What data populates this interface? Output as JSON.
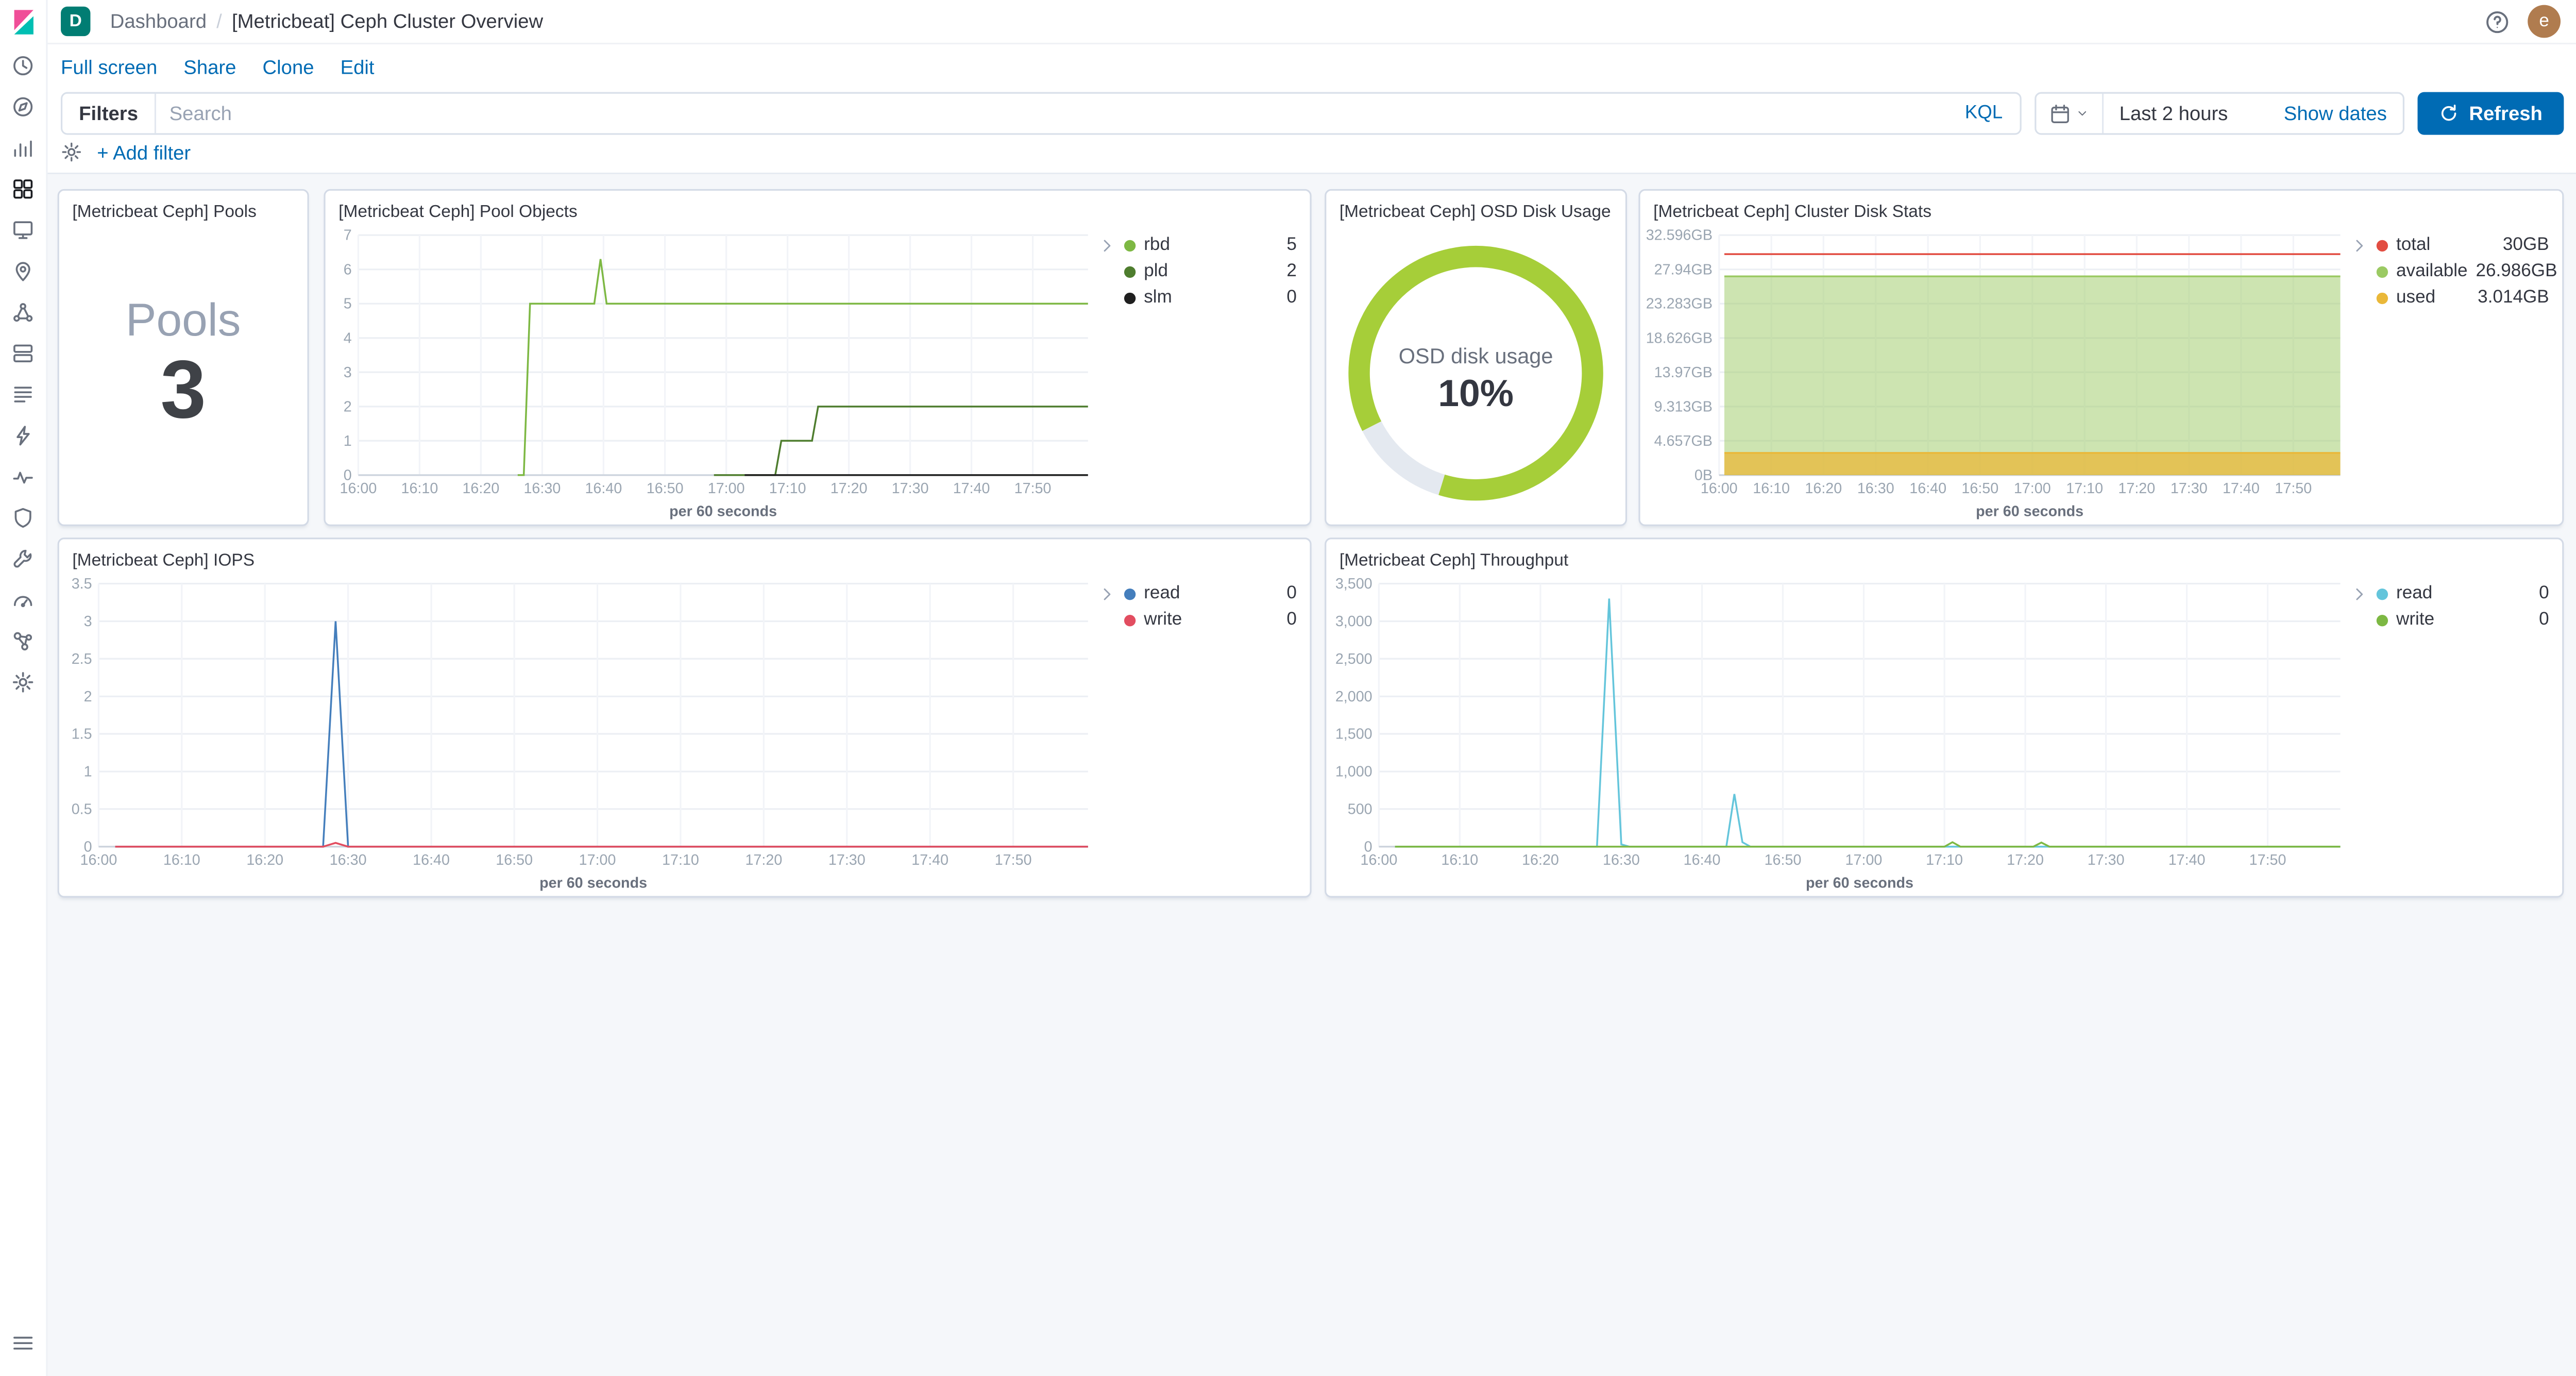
{
  "chrome": {
    "space_initial": "D",
    "breadcrumb_section": "Dashboard",
    "breadcrumb_page": "[Metricbeat] Ceph Cluster Overview",
    "avatar_initial": "e",
    "menu": {
      "full_screen": "Full screen",
      "share": "Share",
      "clone": "Clone",
      "edit": "Edit"
    },
    "query_bar": {
      "filters_label": "Filters",
      "search_placeholder": "Search",
      "kql": "KQL",
      "time_range": "Last 2 hours",
      "show_dates": "Show dates",
      "refresh": "Refresh",
      "add_filter": "+ Add filter"
    }
  },
  "sidebar": {
    "active": "dashboard",
    "items": [
      "recently-viewed",
      "discover",
      "visualize",
      "dashboard",
      "canvas",
      "maps",
      "machine-learning",
      "infrastructure",
      "logs",
      "apm",
      "uptime",
      "siem",
      "dev-tools",
      "stack-monitoring",
      "graph",
      "management"
    ]
  },
  "panels": {
    "pools": {
      "title": "[Metricbeat Ceph] Pools",
      "metric_label": "Pools",
      "metric_value": "3"
    },
    "pool_objects": {
      "title": "[Metricbeat Ceph] Pool Objects",
      "legend": [
        {
          "label": "rbd",
          "value": "5",
          "color": "#7DB843"
        },
        {
          "label": "pld",
          "value": "2",
          "color": "#4E7D2E"
        },
        {
          "label": "slm",
          "value": "0",
          "color": "#1F1F1F"
        }
      ]
    },
    "osd_disk_usage": {
      "title": "[Metricbeat Ceph] OSD Disk Usage",
      "gauge_label": "OSD disk usage",
      "gauge_value": "10%"
    },
    "cluster_disk_stats": {
      "title": "[Metricbeat Ceph] Cluster Disk Stats",
      "legend": [
        {
          "label": "total",
          "value": "30GB",
          "color": "#E24D42"
        },
        {
          "label": "available",
          "value": "26.986GB",
          "color": "#9BCA63"
        },
        {
          "label": "used",
          "value": "3.014GB",
          "color": "#EAB839"
        }
      ]
    },
    "iops": {
      "title": "[Metricbeat Ceph] IOPS",
      "legend": [
        {
          "label": "read",
          "value": "0",
          "color": "#447EBC"
        },
        {
          "label": "write",
          "value": "0",
          "color": "#E24D60"
        }
      ]
    },
    "throughput": {
      "title": "[Metricbeat Ceph] Throughput",
      "legend": [
        {
          "label": "read",
          "value": "0",
          "color": "#64C5DB"
        },
        {
          "label": "write",
          "value": "0",
          "color": "#7DB843"
        }
      ]
    }
  },
  "chart_data": [
    {
      "id": "pools",
      "type": "metric",
      "title": "[Metricbeat Ceph] Pools",
      "label": "Pools",
      "value": 3
    },
    {
      "id": "pool_objects",
      "type": "line",
      "title": "[Metricbeat Ceph] Pool Objects",
      "xlabel": "per 60 seconds",
      "x_unit": "minutes after 16:00",
      "x_domain": [
        0,
        119
      ],
      "x_ticks": [
        [
          0,
          "16:00"
        ],
        [
          10,
          "16:10"
        ],
        [
          20,
          "16:20"
        ],
        [
          30,
          "16:30"
        ],
        [
          40,
          "16:40"
        ],
        [
          50,
          "16:50"
        ],
        [
          60,
          "17:00"
        ],
        [
          70,
          "17:10"
        ],
        [
          80,
          "17:20"
        ],
        [
          90,
          "17:30"
        ],
        [
          100,
          "17:40"
        ],
        [
          110,
          "17:50"
        ]
      ],
      "ylim": [
        0,
        7
      ],
      "y_ticks": [
        [
          0,
          "0"
        ],
        [
          1,
          "1"
        ],
        [
          2,
          "2"
        ],
        [
          3,
          "3"
        ],
        [
          4,
          "4"
        ],
        [
          5,
          "5"
        ],
        [
          6,
          "6"
        ],
        [
          7,
          "7"
        ]
      ],
      "grid": true,
      "legend_position": "right",
      "series": [
        {
          "name": "rbd",
          "color": "#7DB843",
          "current": 5,
          "points": [
            [
              26,
              0
            ],
            [
              27,
              0
            ],
            [
              28,
              5
            ],
            [
              38.5,
              5
            ],
            [
              39.5,
              6.3
            ],
            [
              40.5,
              5
            ],
            [
              119,
              5
            ]
          ]
        },
        {
          "name": "pld",
          "color": "#4E7D2E",
          "current": 2,
          "points": [
            [
              58,
              0
            ],
            [
              68,
              0
            ],
            [
              69,
              1
            ],
            [
              74,
              1
            ],
            [
              75,
              2
            ],
            [
              119,
              2
            ]
          ]
        },
        {
          "name": "slm",
          "color": "#1F1F1F",
          "current": 0,
          "points": [
            [
              63,
              0
            ],
            [
              119,
              0
            ]
          ]
        }
      ]
    },
    {
      "id": "osd_disk_usage",
      "type": "gauge",
      "title": "[Metricbeat Ceph] OSD Disk Usage",
      "label": "OSD disk usage",
      "value": 10,
      "value_label": "10%",
      "color": "#A6CE39"
    },
    {
      "id": "cluster_disk_stats",
      "type": "area",
      "title": "[Metricbeat Ceph] Cluster Disk Stats",
      "xlabel": "per 60 seconds",
      "x_unit": "minutes after 16:00",
      "x_domain": [
        0,
        119
      ],
      "x_ticks": [
        [
          0,
          "16:00"
        ],
        [
          10,
          "16:10"
        ],
        [
          20,
          "16:20"
        ],
        [
          30,
          "16:30"
        ],
        [
          40,
          "16:40"
        ],
        [
          50,
          "16:50"
        ],
        [
          60,
          "17:00"
        ],
        [
          70,
          "17:10"
        ],
        [
          80,
          "17:20"
        ],
        [
          90,
          "17:30"
        ],
        [
          100,
          "17:40"
        ],
        [
          110,
          "17:50"
        ]
      ],
      "ylim": [
        0,
        32.596
      ],
      "y_ticks": [
        [
          0,
          "0B"
        ],
        [
          4.657,
          "4.657GB"
        ],
        [
          9.313,
          "9.313GB"
        ],
        [
          13.97,
          "13.97GB"
        ],
        [
          18.626,
          "18.626GB"
        ],
        [
          23.283,
          "23.283GB"
        ],
        [
          27.94,
          "27.94GB"
        ],
        [
          32.596,
          "32.596GB"
        ]
      ],
      "grid": true,
      "legend_position": "right",
      "series": [
        {
          "name": "total",
          "color": "#E24D42",
          "current": "30GB",
          "points": [
            [
              1,
              30
            ],
            [
              119,
              30
            ]
          ]
        },
        {
          "name": "available",
          "color": "#9BCA63",
          "area": true,
          "fill_opacity": 0.5,
          "current": "26.986GB",
          "points": [
            [
              1,
              26.986
            ],
            [
              119,
              26.986
            ]
          ]
        },
        {
          "name": "used",
          "color": "#EAB839",
          "area": true,
          "fill_opacity": 0.75,
          "current": "3.014GB",
          "points": [
            [
              1,
              3.014
            ],
            [
              119,
              3.014
            ]
          ]
        }
      ]
    },
    {
      "id": "iops",
      "type": "line",
      "title": "[Metricbeat Ceph] IOPS",
      "xlabel": "per 60 seconds",
      "x_unit": "minutes after 16:00",
      "x_domain": [
        0,
        119
      ],
      "x_ticks": [
        [
          0,
          "16:00"
        ],
        [
          10,
          "16:10"
        ],
        [
          20,
          "16:20"
        ],
        [
          30,
          "16:30"
        ],
        [
          40,
          "16:40"
        ],
        [
          50,
          "16:50"
        ],
        [
          60,
          "17:00"
        ],
        [
          70,
          "17:10"
        ],
        [
          80,
          "17:20"
        ],
        [
          90,
          "17:30"
        ],
        [
          100,
          "17:40"
        ],
        [
          110,
          "17:50"
        ]
      ],
      "ylim": [
        0,
        3.5
      ],
      "y_ticks": [
        [
          0,
          "0"
        ],
        [
          0.5,
          "0.5"
        ],
        [
          1,
          "1"
        ],
        [
          1.5,
          "1.5"
        ],
        [
          2,
          "2"
        ],
        [
          2.5,
          "2.5"
        ],
        [
          3,
          "3"
        ],
        [
          3.5,
          "3.5"
        ]
      ],
      "grid": true,
      "legend_position": "right",
      "series": [
        {
          "name": "read",
          "color": "#447EBC",
          "current": 0,
          "points": [
            [
              2,
              0
            ],
            [
              27,
              0
            ],
            [
              28.5,
              3
            ],
            [
              30,
              0
            ],
            [
              119,
              0
            ]
          ]
        },
        {
          "name": "write",
          "color": "#E24D60",
          "current": 0,
          "points": [
            [
              2,
              0
            ],
            [
              27,
              0
            ],
            [
              28.5,
              0.05
            ],
            [
              30,
              0
            ],
            [
              119,
              0
            ]
          ]
        }
      ]
    },
    {
      "id": "throughput",
      "type": "line",
      "title": "[Metricbeat Ceph] Throughput",
      "xlabel": "per 60 seconds",
      "x_unit": "minutes after 16:00",
      "x_domain": [
        0,
        119
      ],
      "x_ticks": [
        [
          0,
          "16:00"
        ],
        [
          10,
          "16:10"
        ],
        [
          20,
          "16:20"
        ],
        [
          30,
          "16:30"
        ],
        [
          40,
          "16:40"
        ],
        [
          50,
          "16:50"
        ],
        [
          60,
          "17:00"
        ],
        [
          70,
          "17:10"
        ],
        [
          80,
          "17:20"
        ],
        [
          90,
          "17:30"
        ],
        [
          100,
          "17:40"
        ],
        [
          110,
          "17:50"
        ]
      ],
      "ylim": [
        0,
        3500
      ],
      "y_ticks": [
        [
          0,
          "0"
        ],
        [
          500,
          "500"
        ],
        [
          1000,
          "1,000"
        ],
        [
          1500,
          "1,500"
        ],
        [
          2000,
          "2,000"
        ],
        [
          2500,
          "2,500"
        ],
        [
          3000,
          "3,000"
        ],
        [
          3500,
          "3,500"
        ]
      ],
      "grid": true,
      "legend_position": "right",
      "series": [
        {
          "name": "read",
          "color": "#64C5DB",
          "current": 0,
          "points": [
            [
              2,
              0
            ],
            [
              27,
              0
            ],
            [
              28.5,
              3300
            ],
            [
              30,
              30
            ],
            [
              31,
              0
            ],
            [
              43,
              0
            ],
            [
              44,
              700
            ],
            [
              45,
              60
            ],
            [
              46,
              0
            ],
            [
              119,
              0
            ]
          ]
        },
        {
          "name": "write",
          "color": "#7DB843",
          "current": 0,
          "points": [
            [
              2,
              0
            ],
            [
              70,
              0
            ],
            [
              71,
              60
            ],
            [
              72,
              0
            ],
            [
              81,
              0
            ],
            [
              82,
              55
            ],
            [
              83,
              0
            ],
            [
              119,
              0
            ]
          ]
        }
      ]
    }
  ]
}
